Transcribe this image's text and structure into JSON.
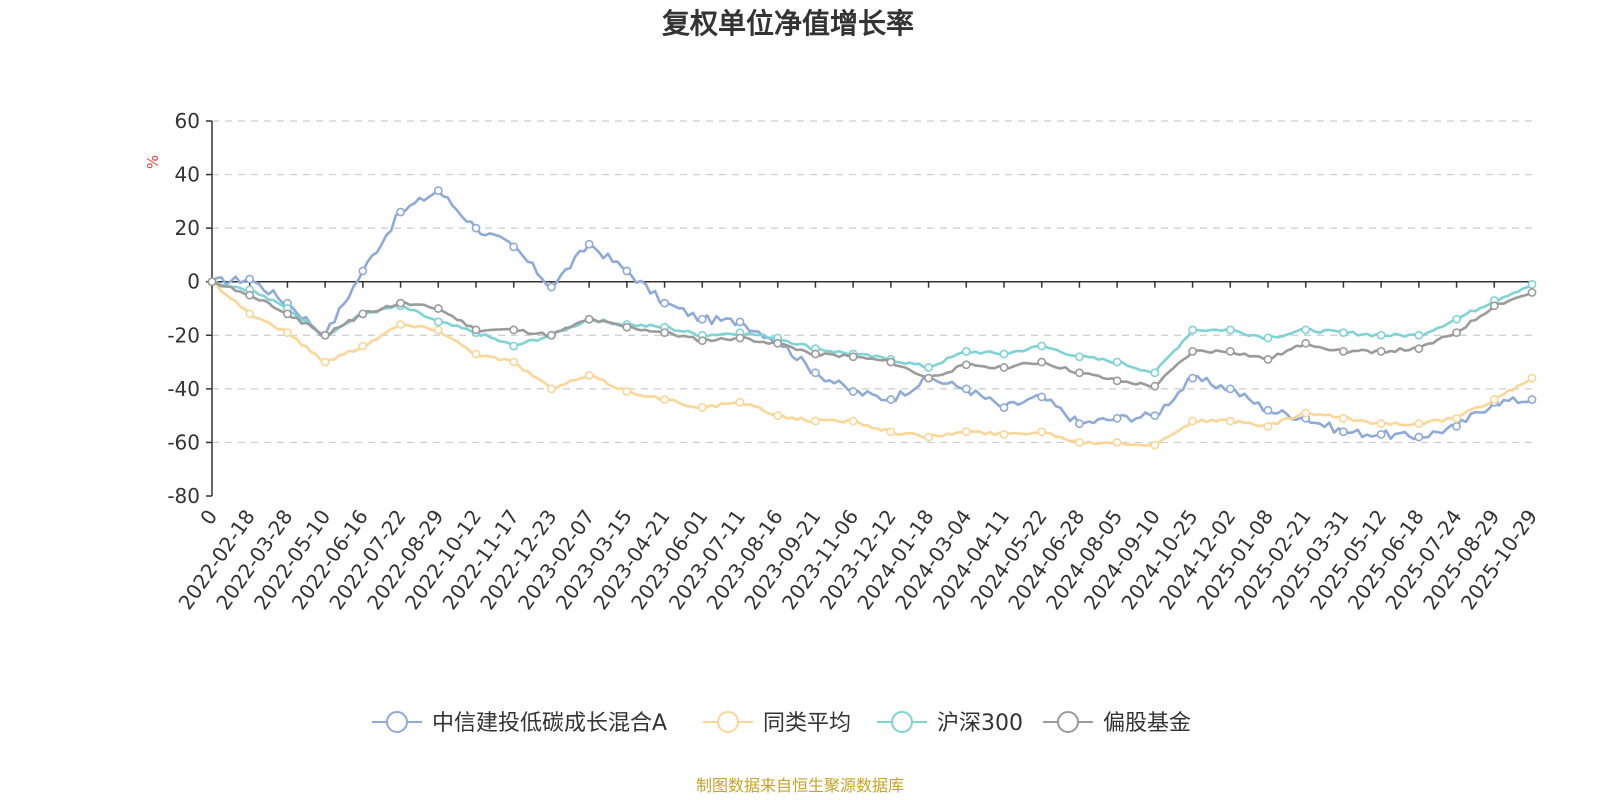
{
  "chart_data": {
    "type": "line",
    "title": "复权单位净值增长率",
    "ylabel": "%",
    "xlabel": "",
    "ylim": [
      -80,
      60
    ],
    "yticks": [
      60,
      40,
      20,
      0,
      -20,
      -40,
      -60,
      -80
    ],
    "grid": true,
    "legend_position": "bottom",
    "source": "制图数据来自恒生聚源数据库",
    "x": [
      "0",
      "2022-02-18",
      "2022-03-28",
      "2022-05-10",
      "2022-06-16",
      "2022-07-22",
      "2022-08-29",
      "2022-10-12",
      "2022-11-17",
      "2022-12-23",
      "2023-02-07",
      "2023-03-15",
      "2023-04-21",
      "2023-06-01",
      "2023-07-11",
      "2023-08-16",
      "2023-09-21",
      "2023-11-06",
      "2023-12-12",
      "2024-01-18",
      "2024-03-04",
      "2024-04-11",
      "2024-05-22",
      "2024-06-28",
      "2024-08-05",
      "2024-09-10",
      "2024-10-25",
      "2024-12-02",
      "2025-01-08",
      "2025-02-21",
      "2025-03-31",
      "2025-05-12",
      "2025-06-18",
      "2025-07-24",
      "2025-08-29",
      "2025-10-29"
    ],
    "series": [
      {
        "name": "中信建投低碳成长混合A",
        "color": "#8eaad8",
        "values": [
          0,
          1,
          -8,
          -20,
          4,
          26,
          34,
          20,
          13,
          -2,
          14,
          4,
          -8,
          -14,
          -15,
          -22,
          -34,
          -41,
          -44,
          -36,
          -40,
          -47,
          -43,
          -53,
          -51,
          -50,
          -36,
          -40,
          -48,
          -51,
          -56,
          -57,
          -58,
          -54,
          -45,
          -44
        ]
      },
      {
        "name": "同类平均",
        "color": "#fcd696",
        "values": [
          0,
          -12,
          -19,
          -30,
          -24,
          -16,
          -18,
          -27,
          -30,
          -40,
          -35,
          -41,
          -44,
          -47,
          -45,
          -50,
          -52,
          -52,
          -56,
          -58,
          -56,
          -57,
          -56,
          -60,
          -60,
          -61,
          -52,
          -52,
          -54,
          -49,
          -51,
          -53,
          -53,
          -51,
          -44,
          -36
        ]
      },
      {
        "name": "沪深300",
        "color": "#7ed3d6",
        "values": [
          0,
          -3,
          -10,
          -20,
          -12,
          -9,
          -15,
          -19,
          -24,
          -20,
          -14,
          -16,
          -17,
          -20,
          -19,
          -21,
          -25,
          -27,
          -29,
          -32,
          -26,
          -27,
          -24,
          -28,
          -30,
          -34,
          -18,
          -18,
          -21,
          -18,
          -19,
          -20,
          -20,
          -14,
          -7,
          -1
        ]
      },
      {
        "name": "偏股基金",
        "color": "#9b9b9b",
        "values": [
          0,
          -5,
          -12,
          -20,
          -12,
          -8,
          -10,
          -18,
          -18,
          -20,
          -14,
          -17,
          -19,
          -22,
          -21,
          -23,
          -27,
          -28,
          -30,
          -36,
          -31,
          -32,
          -30,
          -34,
          -37,
          -39,
          -26,
          -26,
          -29,
          -23,
          -26,
          -26,
          -25,
          -19,
          -9,
          -4
        ]
      }
    ]
  }
}
